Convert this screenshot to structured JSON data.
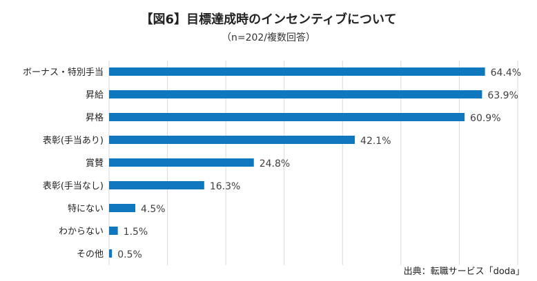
{
  "chart_data": {
    "type": "bar",
    "orientation": "horizontal",
    "title": "【図6】目標達成時のインセンティブについて",
    "subtitle": "（n=202/複数回答）",
    "source": "出典：転職サービス「doda」",
    "categories": [
      "ボーナス・特別手当",
      "昇給",
      "昇格",
      "表彰(手当あり)",
      "賞賛",
      "表彰(手当なし)",
      "特にない",
      "わからない",
      "その他"
    ],
    "values": [
      64.4,
      63.9,
      60.9,
      42.1,
      24.8,
      16.3,
      4.5,
      1.5,
      0.5
    ],
    "data_labels": [
      "64.4%",
      "63.9%",
      "60.9%",
      "42.1%",
      "24.8%",
      "16.3%",
      "4.5%",
      "1.5%",
      "0.5%"
    ],
    "xlim": [
      0,
      70
    ],
    "grid": true,
    "colors": {
      "bar": "#0F77BD",
      "grid": "#D9D9D9"
    }
  }
}
